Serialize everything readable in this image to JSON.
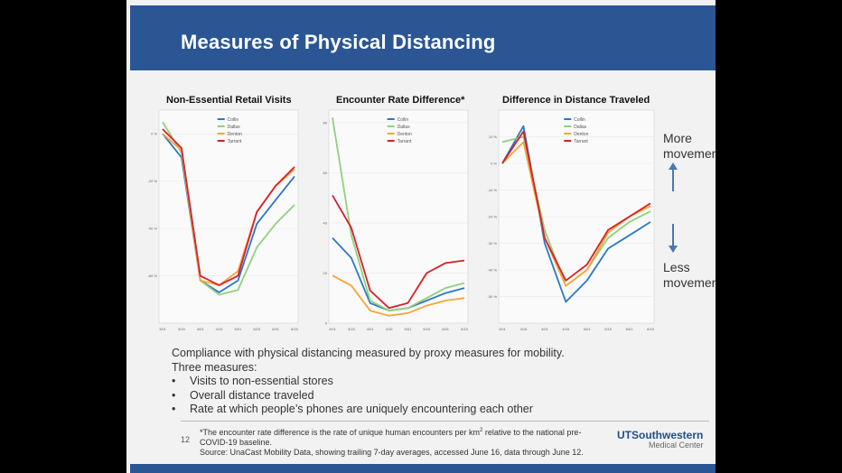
{
  "slide": {
    "title": "Measures of Physical Distancing",
    "annotations": {
      "more": "More movement",
      "less": "Less movement"
    },
    "body": {
      "intro": "Compliance with physical distancing measured by proxy measures for mobility.",
      "sub": "Three measures:",
      "bullets": [
        "Visits to non-essential stores",
        "Overall distance traveled",
        "Rate at which people’s phones are uniquely encountering each other"
      ]
    },
    "footer": {
      "page_number": "12",
      "footnote_line1_pre": "*The encounter rate difference is the rate of unique human encounters per km",
      "footnote_sup": "2",
      "footnote_line1_post": " relative to the national pre-",
      "footnote_line2": "COVID-19 baseline.",
      "footnote_line3": "Source: UnaCast Mobility Data, showing trailing 7-day averages, accessed June 16, data through June 12.",
      "logo_top": "UTSouthwestern",
      "logo_bottom": "Medical Center"
    },
    "colors": {
      "header": "#2b5693",
      "collin": "#2a77c9",
      "dallas": "#8fd17f",
      "denton": "#f5a53a",
      "tarrant": "#d91f26"
    }
  },
  "chart_data": [
    {
      "type": "line",
      "title": "Non-Essential Retail Visits",
      "x": [
        "3/01",
        "3/15",
        "4/01",
        "4/15",
        "5/01",
        "5/15",
        "6/01",
        "6/15"
      ],
      "ylim": [
        -80,
        10
      ],
      "yticks": [
        "0 %",
        "-20 %",
        "-40 %",
        "-60 %"
      ],
      "series": [
        {
          "name": "Collin",
          "color": "#2a77c9",
          "values": [
            0,
            -10,
            -62,
            -67,
            -62,
            -38,
            -28,
            -18
          ]
        },
        {
          "name": "Dallas",
          "color": "#8fd17f",
          "values": [
            5,
            -8,
            -62,
            -68,
            -66,
            -48,
            -38,
            -30
          ]
        },
        {
          "name": "Denton",
          "color": "#f5a53a",
          "values": [
            0,
            -7,
            -62,
            -64,
            -58,
            -33,
            -22,
            -15
          ]
        },
        {
          "name": "Tarrant",
          "color": "#d91f26",
          "values": [
            2,
            -6,
            -60,
            -64,
            -60,
            -33,
            -22,
            -14
          ]
        }
      ]
    },
    {
      "type": "line",
      "title": "Encounter Rate Difference*",
      "x": [
        "3/01",
        "3/15",
        "4/01",
        "4/15",
        "5/01",
        "5/15",
        "6/01",
        "6/15"
      ],
      "ylim": [
        0,
        85
      ],
      "yticks": [
        "80",
        "60",
        "40",
        "20",
        "0"
      ],
      "series": [
        {
          "name": "Collin",
          "color": "#2a77c9",
          "values": [
            34,
            26,
            8,
            5,
            6,
            9,
            12,
            14
          ]
        },
        {
          "name": "Dallas",
          "color": "#8fd17f",
          "values": [
            82,
            35,
            9,
            5,
            6,
            10,
            14,
            16
          ]
        },
        {
          "name": "Denton",
          "color": "#f5a53a",
          "values": [
            19,
            15,
            5,
            3,
            4,
            7,
            9,
            10
          ]
        },
        {
          "name": "Tarrant",
          "color": "#d91f26",
          "values": [
            51,
            38,
            13,
            6,
            8,
            20,
            24,
            25
          ]
        }
      ]
    },
    {
      "type": "line",
      "title": "Difference in Distance Traveled",
      "x": [
        "3/01",
        "3/15",
        "4/01",
        "4/15",
        "5/01",
        "5/15",
        "6/01",
        "6/15"
      ],
      "ylim": [
        -60,
        20
      ],
      "yticks": [
        "10 %",
        "0 %",
        "-10 %",
        "-20 %",
        "-30 %",
        "-40 %",
        "-50 %"
      ],
      "series": [
        {
          "name": "Collin",
          "color": "#2a77c9",
          "values": [
            0,
            14,
            -30,
            -52,
            -44,
            -32,
            -27,
            -22
          ]
        },
        {
          "name": "Dallas",
          "color": "#8fd17f",
          "values": [
            8,
            10,
            -25,
            -46,
            -40,
            -28,
            -22,
            -18
          ]
        },
        {
          "name": "Denton",
          "color": "#f5a53a",
          "values": [
            0,
            8,
            -28,
            -46,
            -40,
            -26,
            -20,
            -16
          ]
        },
        {
          "name": "Tarrant",
          "color": "#d91f26",
          "values": [
            0,
            12,
            -28,
            -44,
            -38,
            -25,
            -20,
            -15
          ]
        }
      ]
    }
  ]
}
